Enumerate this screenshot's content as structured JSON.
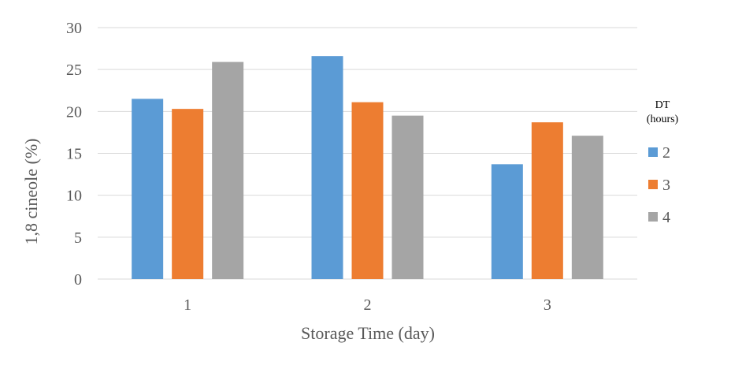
{
  "chart_data": {
    "type": "bar",
    "categories": [
      "1",
      "2",
      "3"
    ],
    "series": [
      {
        "name": "2",
        "color": "#5B9BD5",
        "values": [
          21.5,
          26.6,
          13.7
        ]
      },
      {
        "name": "3",
        "color": "#ED7D31",
        "values": [
          20.3,
          21.1,
          18.7
        ]
      },
      {
        "name": "4",
        "color": "#A5A5A5",
        "values": [
          25.9,
          19.5,
          17.1
        ]
      }
    ],
    "title": "",
    "xlabel": "Storage Time (day)",
    "ylabel": "1,8 cineole (%)",
    "ylim": [
      0,
      30
    ],
    "yticks": [
      0,
      5,
      10,
      15,
      20,
      25,
      30
    ],
    "grid": true,
    "legend": {
      "title_line1": "DT",
      "title_line2": "(hours)",
      "placement": "right"
    },
    "colors": {
      "grid": "#D9D9D9",
      "text": "#595959"
    }
  }
}
